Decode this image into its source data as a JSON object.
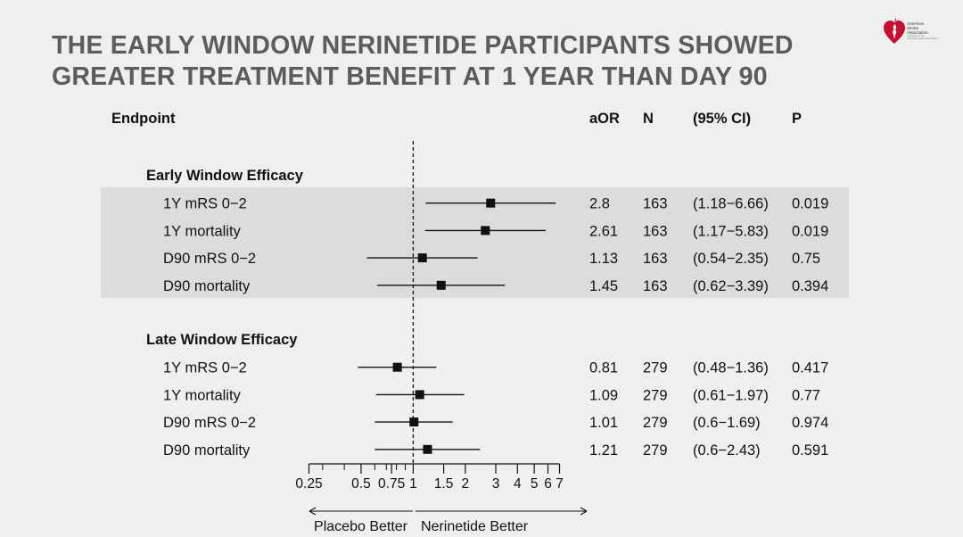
{
  "slide": {
    "title_line1": "THE EARLY WINDOW NERINETIDE  PARTICIPANTS SHOWED",
    "title_line2": "GREATER TREATMENT BENEFIT AT 1 YEAR THAN DAY 90",
    "logo": {
      "icon": "heart-torch-icon",
      "line1": "American",
      "line2": "Stroke",
      "line3": "Association.",
      "line4": "A division of the",
      "line5": "American Heart Association"
    }
  },
  "colors": {
    "background": "#efefed",
    "title": "#5c5c5c",
    "highlight_band": "#dcdcda",
    "marker": "#111111",
    "logo_red": "#c8102e"
  },
  "chart_data": {
    "type": "forest",
    "columns": [
      "Endpoint",
      "aOR",
      "N",
      "(95% CI)",
      "P"
    ],
    "x_scale": "log",
    "reference_line": 1,
    "xlim": [
      0.25,
      7
    ],
    "xticks": [
      0.25,
      0.5,
      0.75,
      1,
      1.5,
      2,
      3,
      4,
      5,
      6,
      7
    ],
    "minor_ticks": [
      0.3,
      0.4,
      0.6,
      0.7,
      0.8,
      0.9
    ],
    "xtick_labels": [
      "0.25",
      "0.5",
      "0.75",
      "1",
      "1.5",
      "2",
      "3",
      "4",
      "5",
      "6",
      "7"
    ],
    "direction_left": "Placebo Better",
    "direction_right": "Nerinetide Better",
    "groups": [
      {
        "name": "Early Window Efficacy",
        "highlighted": true,
        "rows": [
          {
            "endpoint": "1Y mRS 0−2",
            "aor": 2.8,
            "aor_text": "2.8",
            "lo": 1.18,
            "hi": 6.66,
            "n": "163",
            "ci": "(1.18−6.66)",
            "p": "0.019"
          },
          {
            "endpoint": "1Y mortality",
            "aor": 2.61,
            "aor_text": "2.61",
            "lo": 1.17,
            "hi": 5.83,
            "n": "163",
            "ci": "(1.17−5.83)",
            "p": "0.019"
          },
          {
            "endpoint": "D90 mRS 0−2",
            "aor": 1.13,
            "aor_text": "1.13",
            "lo": 0.54,
            "hi": 2.35,
            "n": "163",
            "ci": "(0.54−2.35)",
            "p": "0.75"
          },
          {
            "endpoint": "D90 mortality",
            "aor": 1.45,
            "aor_text": "1.45",
            "lo": 0.62,
            "hi": 3.39,
            "n": "163",
            "ci": "(0.62−3.39)",
            "p": "0.394"
          }
        ]
      },
      {
        "name": "Late Window Efficacy",
        "highlighted": false,
        "rows": [
          {
            "endpoint": "1Y mRS 0−2",
            "aor": 0.81,
            "aor_text": "0.81",
            "lo": 0.48,
            "hi": 1.36,
            "n": "279",
            "ci": "(0.48−1.36)",
            "p": "0.417"
          },
          {
            "endpoint": "1Y mortality",
            "aor": 1.09,
            "aor_text": "1.09",
            "lo": 0.61,
            "hi": 1.97,
            "n": "279",
            "ci": "(0.61−1.97)",
            "p": "0.77"
          },
          {
            "endpoint": "D90 mRS 0−2",
            "aor": 1.01,
            "aor_text": "1.01",
            "lo": 0.6,
            "hi": 1.69,
            "n": "279",
            "ci": "(0.6−1.69)",
            "p": "0.974"
          },
          {
            "endpoint": "D90 mortality",
            "aor": 1.21,
            "aor_text": "1.21",
            "lo": 0.6,
            "hi": 2.43,
            "n": "279",
            "ci": "(0.6−2.43)",
            "p": "0.591"
          }
        ]
      }
    ]
  }
}
